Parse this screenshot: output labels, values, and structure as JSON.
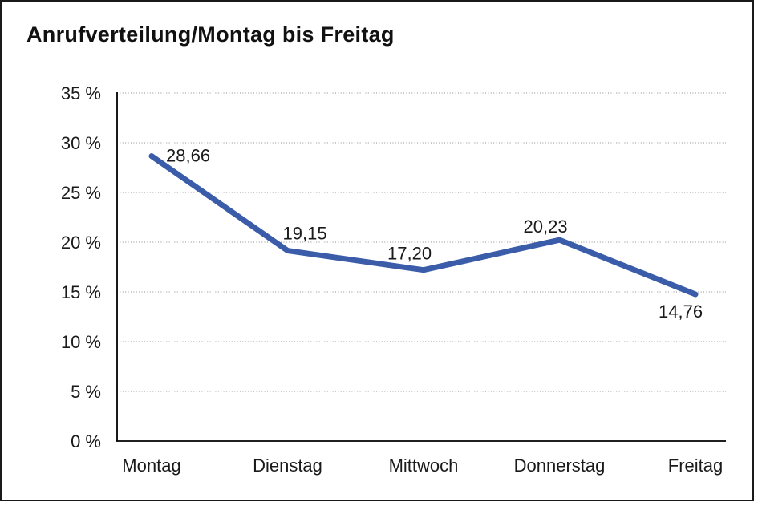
{
  "window": {
    "background": "#ffffff",
    "frame_color": "#1a1a1a"
  },
  "chart_data": {
    "type": "line",
    "title": "Anrufverteilung/Montag bis Freitag",
    "categories": [
      "Montag",
      "Dienstag",
      "Mittwoch",
      "Donnerstag",
      "Freitag"
    ],
    "values": [
      28.66,
      19.15,
      17.2,
      20.23,
      14.76
    ],
    "value_labels": [
      "28,66",
      "19,15",
      "17,20",
      "20,23",
      "14,76"
    ],
    "ylim": [
      0,
      35
    ],
    "ytick_step": 5,
    "ytick_labels": [
      "0 %",
      "5 %",
      "10 %",
      "15 %",
      "20 %",
      "25 %",
      "30 %",
      "35 %"
    ],
    "xlabel": "",
    "ylabel": "",
    "grid": "horizontal-dotted",
    "legend": "none",
    "line_color": "#3A5CA9",
    "gridline_color": "#8C8C8C",
    "axis_color": "#000000",
    "text_color": "#1A1A1A"
  }
}
